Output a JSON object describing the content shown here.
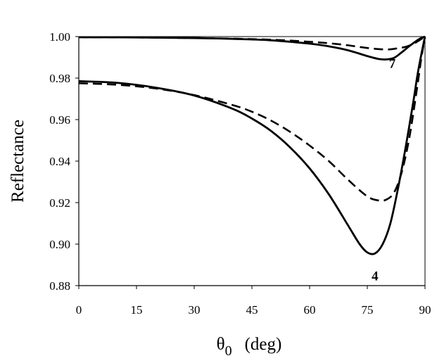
{
  "chart_data": {
    "type": "line",
    "title": "",
    "xlabel": "θ0   (deg)",
    "xlabel_main": "θ",
    "xlabel_sub": "0",
    "xlabel_unit": "(deg)",
    "ylabel": "Reflectance",
    "xlim": [
      0,
      90
    ],
    "ylim": [
      0.88,
      1.0
    ],
    "xticks": [
      0,
      15,
      30,
      45,
      60,
      75,
      90
    ],
    "xtick_labels": [
      "0",
      "15",
      "30",
      "45",
      "60",
      "75",
      "90"
    ],
    "yticks": [
      0.88,
      0.9,
      0.92,
      0.94,
      0.96,
      0.98,
      1.0
    ],
    "ytick_labels": [
      "0.88",
      "0.90",
      "0.92",
      "0.94",
      "0.96",
      "0.98",
      "1.00"
    ],
    "grid": false,
    "series": [
      {
        "name": "curve-7-solid",
        "style": "solid",
        "x": [
          0,
          15,
          30,
          40,
          50,
          60,
          65,
          70,
          75,
          78,
          80,
          82,
          84,
          86,
          88,
          89,
          90
        ],
        "y": [
          0.9997,
          0.9996,
          0.9993,
          0.9989,
          0.9982,
          0.9966,
          0.9953,
          0.9934,
          0.9906,
          0.9892,
          0.989,
          0.9898,
          0.9925,
          0.9955,
          0.9982,
          0.9993,
          1.0
        ]
      },
      {
        "name": "curve-7-dashed",
        "style": "dashed",
        "x": [
          0,
          15,
          30,
          40,
          50,
          60,
          65,
          70,
          75,
          80,
          83,
          85,
          87,
          88,
          89,
          90
        ],
        "y": [
          0.9997,
          0.9996,
          0.9993,
          0.999,
          0.9985,
          0.9975,
          0.9968,
          0.9958,
          0.9945,
          0.9938,
          0.9944,
          0.9951,
          0.9965,
          0.9976,
          0.9988,
          1.0
        ]
      },
      {
        "name": "curve-4-solid",
        "style": "solid",
        "x": [
          0,
          10,
          20,
          30,
          40,
          45,
          50,
          55,
          60,
          65,
          70,
          73,
          75,
          77,
          79,
          81,
          83,
          85,
          87,
          88,
          89,
          90
        ],
        "y": [
          0.9785,
          0.9777,
          0.9754,
          0.9716,
          0.9652,
          0.9605,
          0.9545,
          0.9465,
          0.9365,
          0.924,
          0.909,
          0.9,
          0.896,
          0.8955,
          0.9,
          0.91,
          0.927,
          0.947,
          0.969,
          0.981,
          0.991,
          1.0
        ]
      },
      {
        "name": "curve-4-dashed",
        "style": "dashed",
        "x": [
          0,
          10,
          20,
          30,
          40,
          45,
          50,
          55,
          60,
          65,
          70,
          75,
          78,
          80,
          82,
          84,
          86,
          88,
          89,
          90
        ],
        "y": [
          0.9775,
          0.9768,
          0.975,
          0.9718,
          0.967,
          0.9638,
          0.9595,
          0.954,
          0.9475,
          0.94,
          0.931,
          0.923,
          0.921,
          0.9215,
          0.925,
          0.935,
          0.952,
          0.976,
          0.989,
          1.0
        ]
      }
    ],
    "annotations": [
      {
        "text": "7",
        "x": 81.5,
        "y": 0.9849
      },
      {
        "text": "4",
        "x": 77.0,
        "y": 0.8825
      }
    ]
  }
}
